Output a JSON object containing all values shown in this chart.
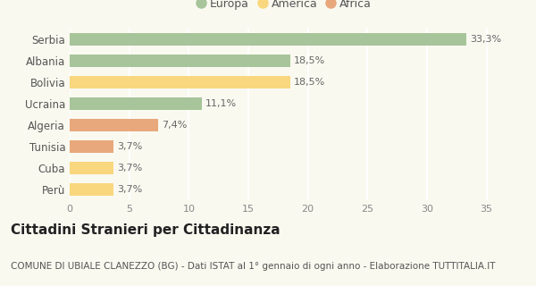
{
  "categories": [
    "Serbia",
    "Albania",
    "Bolivia",
    "Ucraina",
    "Algeria",
    "Tunisia",
    "Cuba",
    "Perù"
  ],
  "values": [
    33.3,
    18.5,
    18.5,
    11.1,
    7.4,
    3.7,
    3.7,
    3.7
  ],
  "labels": [
    "33,3%",
    "18,5%",
    "18,5%",
    "11,1%",
    "7,4%",
    "3,7%",
    "3,7%",
    "3,7%"
  ],
  "colors": [
    "#a8c49a",
    "#a8c49a",
    "#f9d77e",
    "#a8c49a",
    "#e8a87c",
    "#e8a87c",
    "#f9d77e",
    "#f9d77e"
  ],
  "legend_labels": [
    "Europa",
    "America",
    "Africa"
  ],
  "legend_colors": [
    "#a8c49a",
    "#f9d77e",
    "#e8a87c"
  ],
  "title": "Cittadini Stranieri per Cittadinanza",
  "subtitle": "COMUNE DI UBIALE CLANEZZO (BG) - Dati ISTAT al 1° gennaio di ogni anno - Elaborazione TUTTITALIA.IT",
  "xlim": [
    0,
    36
  ],
  "xticks": [
    0,
    5,
    10,
    15,
    20,
    25,
    30,
    35
  ],
  "background_color": "#f9f9f0",
  "grid_color": "#ffffff",
  "title_fontsize": 11,
  "subtitle_fontsize": 7.5,
  "bar_height": 0.55
}
